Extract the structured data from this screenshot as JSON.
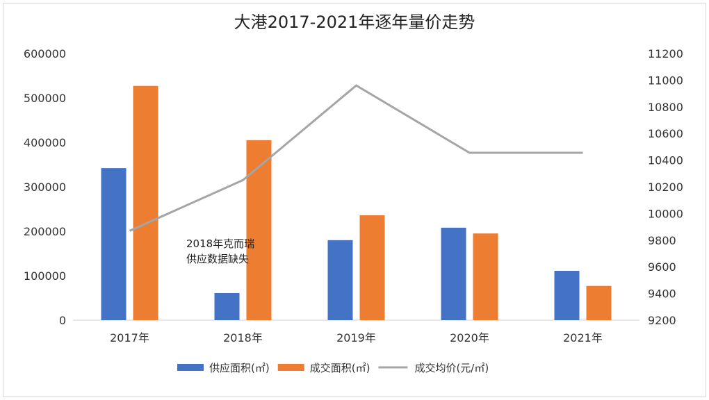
{
  "chart_data": {
    "type": "bar",
    "title": "大港2017-2021年逐年量价走势",
    "categories": [
      "2017年",
      "2018年",
      "2019年",
      "2020年",
      "2021年"
    ],
    "series": [
      {
        "name": "供应面积(㎡)",
        "type": "bar",
        "axis": "left",
        "color": "#4472c4",
        "values": [
          342000,
          61000,
          180000,
          208000,
          111000
        ]
      },
      {
        "name": "成交面积(㎡)",
        "type": "bar",
        "axis": "left",
        "color": "#ed7d31",
        "values": [
          527000,
          405000,
          236000,
          195000,
          77000
        ]
      },
      {
        "name": "成交均价(元/㎡)",
        "type": "line",
        "axis": "right",
        "color": "#a5a5a5",
        "values": [
          9870,
          10250,
          10960,
          10455,
          10455
        ]
      }
    ],
    "left_axis": {
      "ylim": [
        0,
        600000
      ],
      "ticks": [
        "0",
        "100000",
        "200000",
        "300000",
        "400000",
        "500000",
        "600000"
      ]
    },
    "right_axis": {
      "ylim": [
        9200,
        11200
      ],
      "ticks": [
        "9200",
        "9400",
        "9600",
        "9800",
        "10000",
        "10200",
        "10400",
        "10600",
        "10800",
        "11000",
        "11200"
      ]
    },
    "annotation": [
      "2018年克而瑞",
      "供应数据缺失"
    ],
    "grid": false,
    "legend_position": "bottom"
  }
}
